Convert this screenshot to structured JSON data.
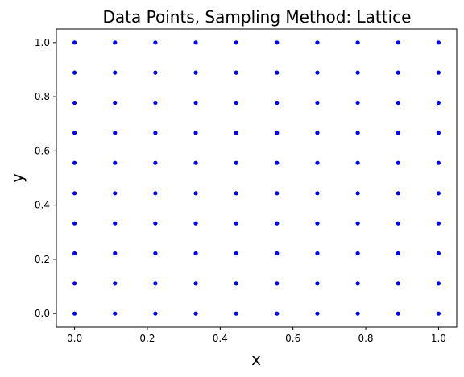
{
  "chart_data": {
    "type": "scatter",
    "title": "Data Points, Sampling Method: Lattice",
    "xlabel": "x",
    "ylabel": "y",
    "xlim": [
      -0.05,
      1.05
    ],
    "ylim": [
      -0.05,
      1.05
    ],
    "xticks": [
      0.0,
      0.2,
      0.4,
      0.6,
      0.8,
      1.0
    ],
    "yticks": [
      0.0,
      0.2,
      0.4,
      0.6,
      0.8,
      1.0
    ],
    "xtick_labels": [
      "0.0",
      "0.2",
      "0.4",
      "0.6",
      "0.8",
      "1.0"
    ],
    "ytick_labels": [
      "0.0",
      "0.2",
      "0.4",
      "0.6",
      "0.8",
      "1.0"
    ],
    "grid": false,
    "marker_color": "#0000ff",
    "lattice_x": [
      0.0,
      0.111,
      0.222,
      0.333,
      0.444,
      0.556,
      0.667,
      0.778,
      0.889,
      1.0
    ],
    "lattice_y": [
      0.0,
      0.111,
      0.222,
      0.333,
      0.444,
      0.556,
      0.667,
      0.778,
      0.889,
      1.0
    ]
  }
}
